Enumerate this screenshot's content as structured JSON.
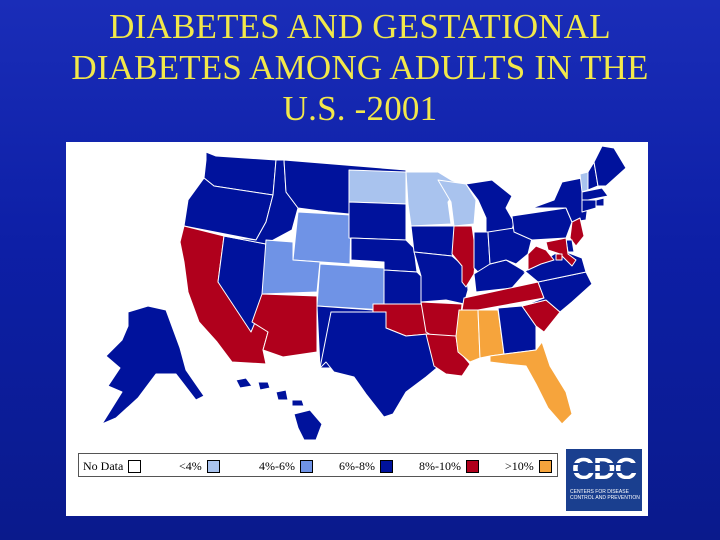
{
  "title": {
    "line1": "DIABETES AND GESTATIONAL",
    "line2": "DIABETES AMONG ADULTS IN THE",
    "line3": "U.S. -2001"
  },
  "colors": {
    "title": "#f2e84a",
    "background": "#1025b0",
    "no_data": "#ffffff",
    "lt4": "#a9c3ee",
    "4_6": "#6f93e6",
    "6_8": "#00129c",
    "8_10": "#b0001c",
    "gt10": "#f6a43c"
  },
  "legend": [
    {
      "label": "No Data",
      "color": "#ffffff"
    },
    {
      "label": "<4%",
      "color": "#a9c3ee"
    },
    {
      "label": "4%-6%",
      "color": "#6f93e6"
    },
    {
      "label": "6%-8%",
      "color": "#00129c"
    },
    {
      "label": "8%-10%",
      "color": "#b0001c"
    },
    {
      "label": ">10%",
      "color": "#f6a43c"
    }
  ],
  "state_categories": {
    "WA": "6_8",
    "OR": "6_8",
    "CA": "8_10",
    "NV": "6_8",
    "ID": "6_8",
    "MT": "6_8",
    "WY": "4_6",
    "UT": "4_6",
    "CO": "4_6",
    "AZ": "8_10",
    "NM": "6_8",
    "ND": "lt4",
    "SD": "6_8",
    "NE": "6_8",
    "KS": "6_8",
    "OK": "8_10",
    "TX": "6_8",
    "MN": "lt4",
    "IA": "6_8",
    "MO": "6_8",
    "AR": "8_10",
    "LA": "8_10",
    "WI": "lt4",
    "IL": "8_10",
    "MS": "gt10",
    "MI": "6_8",
    "IN": "6_8",
    "KY": "6_8",
    "TN": "8_10",
    "AL": "gt10",
    "GA": "6_8",
    "FL": "gt10",
    "SC": "8_10",
    "NC": "6_8",
    "VA": "6_8",
    "WV": "8_10",
    "OH": "6_8",
    "PA": "6_8",
    "NY": "6_8",
    "VT": "lt4",
    "NH": "6_8",
    "ME": "6_8",
    "MA": "6_8",
    "RI": "6_8",
    "CT": "6_8",
    "NJ": "8_10",
    "DE": "6_8",
    "MD": "8_10",
    "DC": "8_10",
    "AK": "6_8",
    "HI": "6_8"
  },
  "logo": {
    "text": "CDC",
    "subtitle_lines": [
      "CENTERS FOR DISEASE",
      "CONTROL AND PREVENTION"
    ]
  }
}
